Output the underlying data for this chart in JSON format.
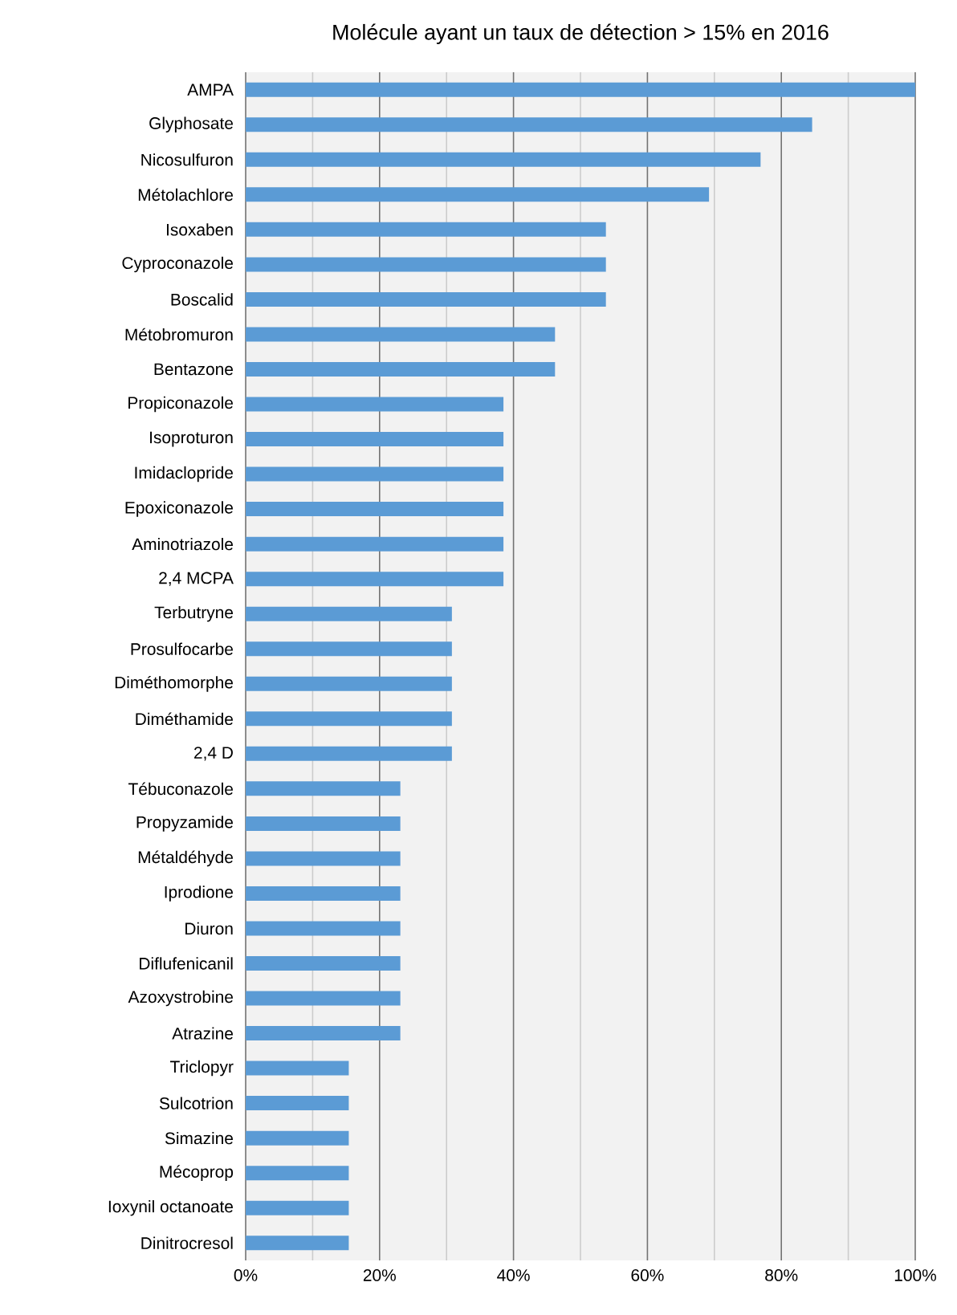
{
  "chart_data": {
    "type": "bar",
    "orientation": "horizontal",
    "title": "Molécule ayant un taux de détection > 15% en 2016",
    "categories": [
      "AMPA",
      "Glyphosate",
      "Nicosulfuron",
      "Métolachlore",
      "Isoxaben",
      "Cyproconazole",
      "Boscalid",
      "Métobromuron",
      "Bentazone",
      "Propiconazole",
      "Isoproturon",
      "Imidaclopride",
      "Epoxiconazole",
      "Aminotriazole",
      "2,4 MCPA",
      "Terbutryne",
      "Prosulfocarbe",
      "Diméthomorphe",
      "Diméthamide",
      "2,4 D",
      "Tébuconazole",
      "Propyzamide",
      "Métaldéhyde",
      "Iprodione",
      "Diuron",
      "Diflufenicanil",
      "Azoxystrobine",
      "Atrazine",
      "Triclopyr",
      "Sulcotrion",
      "Simazine",
      "Mécoprop",
      "Ioxynil octanoate",
      "Dinitrocresol"
    ],
    "values": [
      100,
      84.6,
      76.9,
      69.2,
      53.8,
      53.8,
      53.8,
      46.2,
      46.2,
      38.5,
      38.5,
      38.5,
      38.5,
      38.5,
      38.5,
      30.8,
      30.8,
      30.8,
      30.8,
      30.8,
      23.1,
      23.1,
      23.1,
      23.1,
      23.1,
      23.1,
      23.1,
      23.1,
      15.4,
      15.4,
      15.4,
      15.4,
      15.4,
      15.4
    ],
    "color": "#5b9bd5",
    "xlim": [
      0,
      100
    ],
    "xticks": [
      {
        "value": 0,
        "label": "0%"
      },
      {
        "value": 20,
        "label": "20%"
      },
      {
        "value": 40,
        "label": "40%"
      },
      {
        "value": 60,
        "label": "60%"
      },
      {
        "value": 80,
        "label": "80%"
      },
      {
        "value": 100,
        "label": "100%"
      }
    ],
    "grid": "x"
  }
}
